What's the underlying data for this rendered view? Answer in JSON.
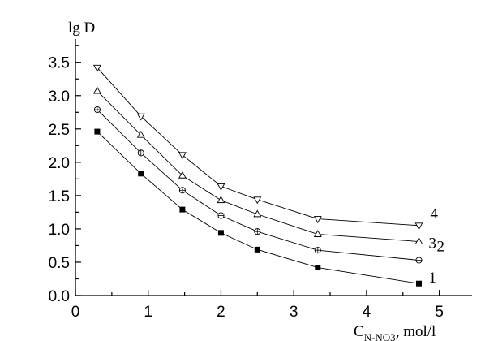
{
  "chart_data": {
    "type": "line",
    "title": "",
    "ylabel": "lg D",
    "xlabel": "C",
    "xlabel_sub": "N-NO3",
    "xlabel_tail": ", mol/l",
    "xlim": [
      0,
      5.45
    ],
    "ylim": [
      0,
      3.85
    ],
    "xticks": [
      0,
      1,
      2,
      3,
      4,
      5
    ],
    "yticks": [
      "0.0",
      "0.5",
      "1.0",
      "1.5",
      "2.0",
      "2.5",
      "3.0",
      "3.5"
    ],
    "grid": false,
    "series": [
      {
        "name": "1",
        "marker": "square",
        "x": [
          0.3,
          0.9,
          1.47,
          2.0,
          2.5,
          3.33,
          4.72
        ],
        "y": [
          2.46,
          1.83,
          1.29,
          0.94,
          0.69,
          0.42,
          0.18
        ]
      },
      {
        "name": "2",
        "marker": "circle-cross",
        "x": [
          0.3,
          0.9,
          1.47,
          2.0,
          2.5,
          3.33,
          4.72
        ],
        "y": [
          2.79,
          2.14,
          1.58,
          1.2,
          0.96,
          0.68,
          0.53
        ]
      },
      {
        "name": "3",
        "marker": "triangle-up",
        "x": [
          0.3,
          0.9,
          1.47,
          2.0,
          2.5,
          3.33,
          4.72
        ],
        "y": [
          3.07,
          2.41,
          1.8,
          1.43,
          1.22,
          0.92,
          0.81
        ]
      },
      {
        "name": "4",
        "marker": "triangle-down",
        "x": [
          0.3,
          0.9,
          1.47,
          2.0,
          2.5,
          3.33,
          4.72
        ],
        "y": [
          3.42,
          2.69,
          2.11,
          1.64,
          1.44,
          1.15,
          1.05
        ]
      }
    ]
  }
}
